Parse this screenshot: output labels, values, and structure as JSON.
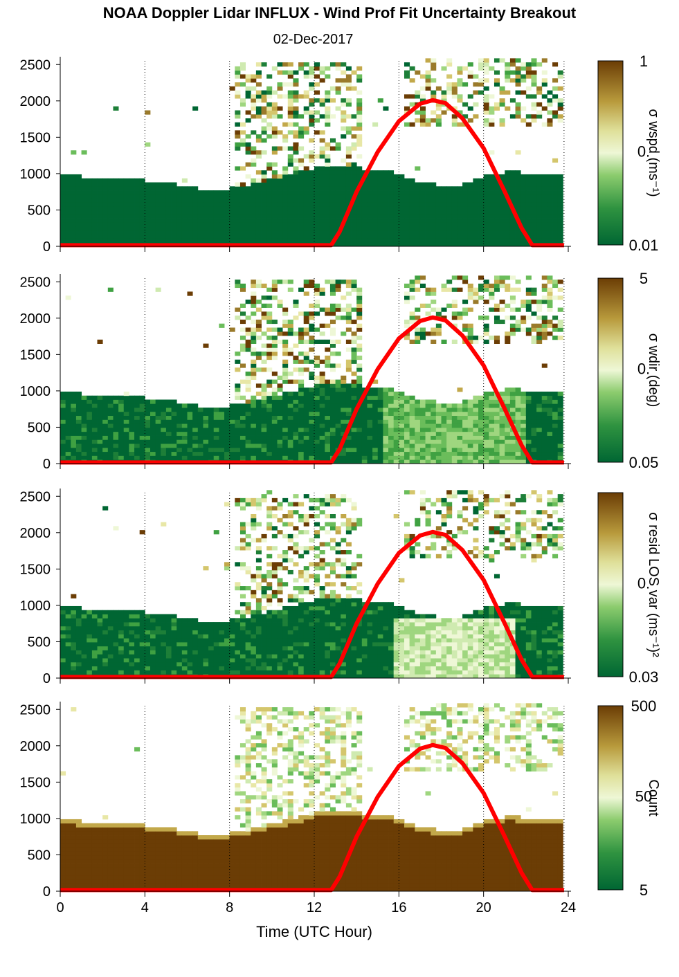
{
  "title": "NOAA Doppler Lidar INFLUX - Wind Prof Fit Uncertainty Breakout",
  "date": "02-Dec-2017",
  "chart_data": [
    {
      "type": "heatmap",
      "colorbar_label": "σ wspd (ms⁻¹)",
      "colorbar_ticks": [
        "1",
        "0.",
        "0.01"
      ],
      "x": [
        0,
        4,
        8,
        12,
        16,
        20,
        24
      ],
      "xlim": [
        0,
        24
      ],
      "ylim": [
        0,
        2550
      ],
      "yticks": [
        0,
        500,
        1000,
        1500,
        2000,
        2500
      ],
      "boundary_layer_top": [
        [
          0,
          950
        ],
        [
          2,
          920
        ],
        [
          4,
          880
        ],
        [
          6,
          800
        ],
        [
          7,
          740
        ],
        [
          8,
          780
        ],
        [
          10,
          900
        ],
        [
          12,
          1050
        ],
        [
          14,
          1050
        ],
        [
          15.5,
          1000
        ],
        [
          17,
          850
        ],
        [
          18.5,
          780
        ],
        [
          20,
          950
        ],
        [
          21,
          1000
        ],
        [
          23.8,
          950
        ]
      ]
    },
    {
      "type": "heatmap",
      "colorbar_label": "σ wdir (deg)",
      "colorbar_ticks": [
        "5",
        "0.",
        "0.05"
      ],
      "x": [
        0,
        4,
        8,
        12,
        16,
        20,
        24
      ],
      "xlim": [
        0,
        24
      ],
      "ylim": [
        0,
        2550
      ],
      "yticks": [
        0,
        500,
        1000,
        1500,
        2000,
        2500
      ]
    },
    {
      "type": "heatmap",
      "colorbar_label": "σ resid LOS var (ms⁻¹)²",
      "colorbar_ticks": [
        "",
        "0.",
        "0.03"
      ],
      "x": [
        0,
        4,
        8,
        12,
        16,
        20,
        24
      ],
      "xlim": [
        0,
        24
      ],
      "ylim": [
        0,
        2550
      ],
      "yticks": [
        0,
        500,
        1000,
        1500,
        2000,
        2500
      ]
    },
    {
      "type": "heatmap",
      "colorbar_label": "Count",
      "colorbar_ticks": [
        "500",
        "50",
        "5"
      ],
      "x": [
        0,
        4,
        8,
        12,
        16,
        20,
        24
      ],
      "xlim": [
        0,
        24
      ],
      "ylim": [
        0,
        2550
      ],
      "yticks": [
        0,
        500,
        1000,
        1500,
        2000,
        2500
      ],
      "xlabel": "Time (UTC Hour)"
    }
  ],
  "overlay": {
    "type": "line",
    "color": "#ff0000",
    "x": [
      0,
      12.8,
      13.2,
      14,
      15,
      16,
      17,
      17.6,
      18.2,
      19,
      20,
      21,
      21.8,
      22.3,
      23.8
    ],
    "y": [
      15,
      15,
      200,
      750,
      1300,
      1720,
      1960,
      2010,
      1970,
      1760,
      1350,
      750,
      250,
      15,
      15
    ]
  },
  "colors": {
    "dark_green": "#006633",
    "mid_green": "#3fa142",
    "light_green": "#9fd67f",
    "pale": "#eef7d6",
    "tan": "#c2a84a",
    "brown": "#6b3d05",
    "line_red": "#ff0000"
  }
}
